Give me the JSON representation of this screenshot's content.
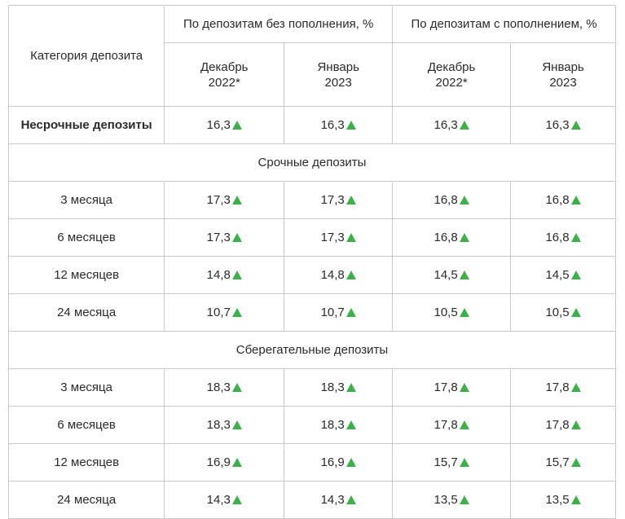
{
  "table": {
    "category_header": "Категория депозита",
    "group_headers": [
      "По депозитам без пополнения, %",
      "По депозитам с пополнением, %"
    ],
    "sub_headers": [
      [
        "Декабрь",
        "2022*"
      ],
      [
        "Январь",
        "2023"
      ],
      [
        "Декабрь",
        "2022*"
      ],
      [
        "Январь",
        "2023"
      ]
    ],
    "trend_icon": "up-arrow-icon",
    "trend_color": "#3daf4b",
    "rows": [
      {
        "type": "row",
        "label": "Несрочные депозиты",
        "bold": true,
        "values": [
          "16,3",
          "16,3",
          "16,3",
          "16,3"
        ]
      },
      {
        "type": "section",
        "label": "Срочные депозиты"
      },
      {
        "type": "row",
        "label": "3 месяца",
        "values": [
          "17,3",
          "17,3",
          "16,8",
          "16,8"
        ]
      },
      {
        "type": "row",
        "label": "6 месяцев",
        "values": [
          "17,3",
          "17,3",
          "16,8",
          "16,8"
        ]
      },
      {
        "type": "row",
        "label": "12 месяцев",
        "values": [
          "14,8",
          "14,8",
          "14,5",
          "14,5"
        ]
      },
      {
        "type": "row",
        "label": "24 месяца",
        "values": [
          "10,7",
          "10,7",
          "10,5",
          "10,5"
        ]
      },
      {
        "type": "section",
        "label": "Сберегательные депозиты"
      },
      {
        "type": "row",
        "label": "3 месяца",
        "values": [
          "18,3",
          "18,3",
          "17,8",
          "17,8"
        ]
      },
      {
        "type": "row",
        "label": "6 месяцев",
        "values": [
          "18,3",
          "18,3",
          "17,8",
          "17,8"
        ]
      },
      {
        "type": "row",
        "label": "12 месяцев",
        "values": [
          "16,9",
          "16,9",
          "15,7",
          "15,7"
        ]
      },
      {
        "type": "row",
        "label": "24 месяца",
        "values": [
          "14,3",
          "14,3",
          "13,5",
          "13,5"
        ]
      }
    ]
  }
}
